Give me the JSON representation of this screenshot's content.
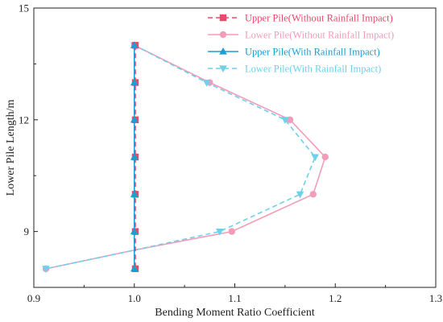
{
  "chart_data": {
    "type": "line",
    "xlabel": "Bending Moment Ratio Coefficient",
    "ylabel": "Lower Pile Length/m",
    "xlim": [
      0.9,
      1.3
    ],
    "ylim": [
      7.5,
      15
    ],
    "xticks": [
      0.9,
      1.0,
      1.1,
      1.2,
      1.3
    ],
    "xtick_labels": [
      "0.9",
      "1.0",
      "1.1",
      "1.2",
      "1.3"
    ],
    "yticks": [
      9,
      12,
      15
    ],
    "ytick_labels": [
      "9",
      "12",
      "15"
    ],
    "grid": false,
    "legend_position": "top-right",
    "series": [
      {
        "name": "Upper Pile(Without Rainfall Impact)",
        "color": "#e84a6a",
        "marker": "square",
        "line": "dashed",
        "x": [
          1.001,
          1.001,
          1.001,
          1.001,
          1.001,
          1.001,
          1.001,
          1.001
        ],
        "y": [
          14,
          13,
          12,
          11,
          10,
          9,
          8.5,
          8
        ]
      },
      {
        "name": "Lower Pile(Without Rainfall Impact)",
        "color": "#f29cb8",
        "marker": "circle",
        "line": "solid",
        "x": [
          1.0,
          1.075,
          1.155,
          1.19,
          1.178,
          1.097,
          1.0,
          0.912
        ],
        "y": [
          14,
          13,
          12,
          11,
          10,
          9,
          8.5,
          8
        ]
      },
      {
        "name": "Upper Pile(With Rainfall Impact)",
        "color": "#1a9fd0",
        "marker": "triangle-up",
        "line": "solid",
        "x": [
          1.0,
          1.0,
          1.0,
          1.0,
          1.0,
          1.0,
          1.0,
          1.0
        ],
        "y": [
          14,
          13,
          12,
          11,
          10,
          9,
          8.5,
          8
        ]
      },
      {
        "name": "Lower Pile(With Rainfall Impact)",
        "color": "#6fd0ea",
        "marker": "triangle-down",
        "line": "dashed",
        "x": [
          1.0,
          1.072,
          1.15,
          1.18,
          1.165,
          1.085,
          1.0,
          0.912
        ],
        "y": [
          14,
          13,
          12,
          11,
          10,
          9,
          8.5,
          8
        ]
      }
    ]
  }
}
